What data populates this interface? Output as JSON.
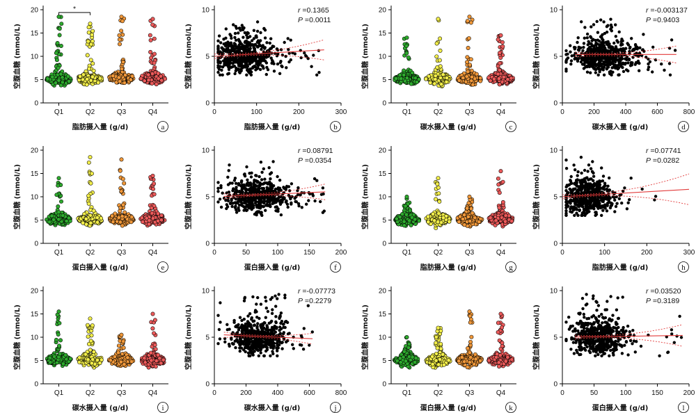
{
  "colors": {
    "Q1": "#2eaa2e",
    "Q2": "#f2ee4a",
    "Q3": "#f0983a",
    "Q4": "#ec5a5a",
    "scatter": "#000000",
    "fit_line": "#e23a3a",
    "panel_circle": "#000000"
  },
  "chart_data": [
    {
      "id": "a",
      "type": "scatter",
      "subtype": "quartile-dot-plot",
      "letter": "a",
      "xlabel": "脂肪摄入量 (g/d)",
      "ylabel": "空腹血糖 (mmol/L)",
      "categories": [
        "Q1",
        "Q2",
        "Q3",
        "Q4"
      ],
      "ylim": [
        0,
        20
      ],
      "yticks": [
        "0",
        "5",
        "10",
        "15",
        "20"
      ],
      "significance": {
        "between": [
          "Q1",
          "Q2"
        ],
        "label": "*"
      },
      "series": [
        {
          "category": "Q1",
          "median": 5.0,
          "max": 18.5,
          "min": 3.5
        },
        {
          "category": "Q2",
          "median": 5.2,
          "max": 17.0,
          "min": 3.2
        },
        {
          "category": "Q3",
          "median": 5.3,
          "max": 18.5,
          "min": 3.0
        },
        {
          "category": "Q4",
          "median": 5.3,
          "max": 18.0,
          "min": 3.5
        }
      ]
    },
    {
      "id": "b",
      "type": "scatter",
      "subtype": "regression",
      "letter": "b",
      "xlabel": "脂肪摄入量 (g/d)",
      "ylabel": "空腹血糖 (mmol/L)",
      "xlim": [
        0,
        300
      ],
      "xticks": [
        "0",
        "100",
        "200",
        "300"
      ],
      "ylim": [
        0,
        10
      ],
      "yticks": [
        "0",
        "5",
        "10"
      ],
      "stats": {
        "r_key": "r",
        "r": "=0.1365",
        "p_key": "P",
        "p": "=0.0011"
      },
      "fit": {
        "y_at_xmin": 5.0,
        "y_at_xmax": 5.8,
        "x_start": 0,
        "x_end": 260
      },
      "cloud": {
        "x_center": 70,
        "x_spread": 35,
        "y_center": 5.0,
        "y_spread": 0.9,
        "n": 550,
        "x_max": 255,
        "y_max": 9.0
      }
    },
    {
      "id": "c",
      "type": "scatter",
      "subtype": "quartile-dot-plot",
      "letter": "c",
      "xlabel": "碳水摄入量 (g/d)",
      "ylabel": "空腹血糖 (mmol/L)",
      "categories": [
        "Q1",
        "Q2",
        "Q3",
        "Q4"
      ],
      "ylim": [
        0,
        20
      ],
      "yticks": [
        "0",
        "5",
        "10",
        "15",
        "20"
      ],
      "series": [
        {
          "category": "Q1",
          "median": 5.1,
          "max": 14.0,
          "min": 3.5
        },
        {
          "category": "Q2",
          "median": 5.2,
          "max": 18.0,
          "min": 3.5
        },
        {
          "category": "Q3",
          "median": 5.2,
          "max": 18.5,
          "min": 3.3
        },
        {
          "category": "Q4",
          "median": 5.2,
          "max": 14.5,
          "min": 3.5
        }
      ]
    },
    {
      "id": "d",
      "type": "scatter",
      "subtype": "regression",
      "letter": "d",
      "xlabel": "碳水摄入量 (g/d)",
      "ylabel": "空腹血糖 (mmol/L)",
      "xlim": [
        0,
        800
      ],
      "xticks": [
        "0",
        "200",
        "400",
        "600",
        "800"
      ],
      "ylim": [
        0,
        10
      ],
      "yticks": [
        "0",
        "5",
        "10"
      ],
      "stats": {
        "r_key": "r",
        "r": "=-0.003137",
        "p_key": "P",
        "p": "=0.9403"
      },
      "fit": {
        "y_at_xmin": 5.2,
        "y_at_xmax": 5.2,
        "x_start": 80,
        "x_end": 720
      },
      "cloud": {
        "x_center": 260,
        "x_spread": 100,
        "y_center": 5.0,
        "y_spread": 0.9,
        "n": 550,
        "x_max": 720,
        "y_max": 9.0
      }
    },
    {
      "id": "e",
      "type": "scatter",
      "subtype": "quartile-dot-plot",
      "letter": "e",
      "xlabel": "蛋白摄入量 (g/d)",
      "ylabel": "空腹血糖 (mmol/L)",
      "categories": [
        "Q1",
        "Q2",
        "Q3",
        "Q4"
      ],
      "ylim": [
        0,
        20
      ],
      "yticks": [
        "0",
        "5",
        "10",
        "15",
        "20"
      ],
      "series": [
        {
          "category": "Q1",
          "median": 5.1,
          "max": 14.0,
          "min": 3.5
        },
        {
          "category": "Q2",
          "median": 5.1,
          "max": 18.5,
          "min": 3.3
        },
        {
          "category": "Q3",
          "median": 5.2,
          "max": 18.0,
          "min": 3.5
        },
        {
          "category": "Q4",
          "median": 5.2,
          "max": 14.5,
          "min": 3.5
        }
      ]
    },
    {
      "id": "f",
      "type": "scatter",
      "subtype": "regression",
      "letter": "f",
      "xlabel": "蛋白摄入量 (g/d)",
      "ylabel": "空腹血糖 (mmol/L)",
      "xlim": [
        0,
        200
      ],
      "xticks": [
        "0",
        "50",
        "100",
        "150",
        "200"
      ],
      "ylim": [
        0,
        10
      ],
      "yticks": [
        "0",
        "5",
        "10"
      ],
      "stats": {
        "r_key": "r",
        "r": "=0.08791",
        "p_key": "P",
        "p": "=0.0354"
      },
      "fit": {
        "y_at_xmin": 5.0,
        "y_at_xmax": 5.6,
        "x_start": 15,
        "x_end": 175
      },
      "cloud": {
        "x_center": 65,
        "x_spread": 25,
        "y_center": 5.0,
        "y_spread": 0.9,
        "n": 550,
        "x_max": 175,
        "y_max": 9.0
      }
    },
    {
      "id": "g",
      "type": "scatter",
      "subtype": "quartile-dot-plot",
      "letter": "g",
      "xlabel": "脂肪摄入量 (g/d)",
      "ylabel": "空腹血糖 (mmol/L)",
      "categories": [
        "Q1",
        "Q2",
        "Q3",
        "Q4"
      ],
      "ylim": [
        0,
        20
      ],
      "yticks": [
        "0",
        "5",
        "10",
        "15",
        "20"
      ],
      "series": [
        {
          "category": "Q1",
          "median": 5.0,
          "max": 10.0,
          "min": 3.5
        },
        {
          "category": "Q2",
          "median": 5.1,
          "max": 14.0,
          "min": 3.3
        },
        {
          "category": "Q3",
          "median": 5.1,
          "max": 10.0,
          "min": 3.5
        },
        {
          "category": "Q4",
          "median": 5.2,
          "max": 15.5,
          "min": 3.5
        }
      ]
    },
    {
      "id": "h",
      "type": "scatter",
      "subtype": "regression",
      "letter": "h",
      "xlabel": "脂肪摄入量 (g/d)",
      "ylabel": "空腹血糖 (mmol/L)",
      "xlim": [
        0,
        300
      ],
      "xticks": [
        "0",
        "100",
        "200",
        "300"
      ],
      "ylim": [
        0,
        10
      ],
      "yticks": [
        "0",
        "5",
        "10"
      ],
      "stats": {
        "r_key": "r",
        "r": "=0.07741",
        "p_key": "P",
        "p": "=0.0282"
      },
      "fit": {
        "y_at_xmin": 5.0,
        "y_at_xmax": 5.8,
        "x_start": 0,
        "x_end": 300
      },
      "cloud": {
        "x_center": 60,
        "x_spread": 30,
        "y_center": 5.0,
        "y_spread": 0.9,
        "n": 550,
        "x_max": 230,
        "y_max": 9.6
      }
    },
    {
      "id": "i",
      "type": "scatter",
      "subtype": "quartile-dot-plot",
      "letter": "i",
      "xlabel": "碳水摄入量 (g/d)",
      "ylabel": "空腹血糖 (mmol/L)",
      "categories": [
        "Q1",
        "Q2",
        "Q3",
        "Q4"
      ],
      "ylim": [
        0,
        20
      ],
      "yticks": [
        "0",
        "5",
        "10",
        "15",
        "20"
      ],
      "series": [
        {
          "category": "Q1",
          "median": 5.1,
          "max": 15.5,
          "min": 3.5
        },
        {
          "category": "Q2",
          "median": 5.1,
          "max": 14.0,
          "min": 3.5
        },
        {
          "category": "Q3",
          "median": 5.0,
          "max": 10.5,
          "min": 3.3
        },
        {
          "category": "Q4",
          "median": 5.0,
          "max": 15.0,
          "min": 3.5
        }
      ]
    },
    {
      "id": "j",
      "type": "scatter",
      "subtype": "regression",
      "letter": "j",
      "xlabel": "碳水摄入量 (g/d)",
      "ylabel": "空腹血糖 (mmol/L)",
      "xlim": [
        0,
        800
      ],
      "xticks": [
        "0",
        "200",
        "400",
        "600",
        "800"
      ],
      "ylim": [
        0,
        10
      ],
      "yticks": [
        "0",
        "5",
        "10"
      ],
      "stats": {
        "r_key": "r",
        "r": "=-0.07773",
        "p_key": "P",
        "p": "=0.2279"
      },
      "fit": {
        "y_at_xmin": 5.3,
        "y_at_xmax": 4.7,
        "x_start": 60,
        "x_end": 620
      },
      "cloud": {
        "x_center": 270,
        "x_spread": 90,
        "y_center": 5.0,
        "y_spread": 0.9,
        "n": 550,
        "x_max": 620,
        "y_max": 9.6
      }
    },
    {
      "id": "k",
      "type": "scatter",
      "subtype": "quartile-dot-plot",
      "letter": "k",
      "xlabel": "蛋白摄入量 (g/d)",
      "ylabel": "空腹血糖 (mmol/L)",
      "categories": [
        "Q1",
        "Q2",
        "Q3",
        "Q4"
      ],
      "ylim": [
        0,
        20
      ],
      "yticks": [
        "0",
        "5",
        "10",
        "15",
        "20"
      ],
      "series": [
        {
          "category": "Q1",
          "median": 5.0,
          "max": 10.0,
          "min": 3.5
        },
        {
          "category": "Q2",
          "median": 5.0,
          "max": 12.0,
          "min": 3.3
        },
        {
          "category": "Q3",
          "median": 5.1,
          "max": 15.5,
          "min": 3.5
        },
        {
          "category": "Q4",
          "median": 5.1,
          "max": 15.0,
          "min": 3.5
        }
      ]
    },
    {
      "id": "l",
      "type": "scatter",
      "subtype": "regression",
      "letter": "l",
      "xlabel": "蛋白摄入量 (g/d)",
      "ylabel": "空腹血糖 (mmol/L)",
      "xlim": [
        0,
        200
      ],
      "xticks": [
        "0",
        "50",
        "100",
        "150",
        "200"
      ],
      "ylim": [
        0,
        10
      ],
      "yticks": [
        "0",
        "5",
        "10"
      ],
      "stats": {
        "r_key": "r",
        "r": "=0.03520",
        "p_key": "P",
        "p": "=0.3189"
      },
      "fit": {
        "y_at_xmin": 5.0,
        "y_at_xmax": 5.2,
        "x_start": 20,
        "x_end": 190
      },
      "cloud": {
        "x_center": 58,
        "x_spread": 22,
        "y_center": 5.0,
        "y_spread": 0.9,
        "n": 550,
        "x_max": 190,
        "y_max": 9.6
      }
    }
  ]
}
